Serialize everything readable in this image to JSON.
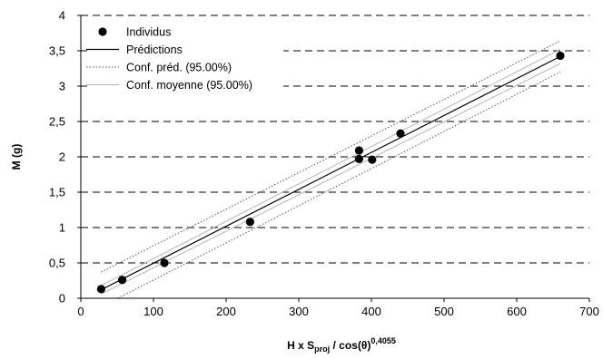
{
  "chart_data": {
    "type": "scatter",
    "xlabel": "H x S",
    "xlabel_sub": "proj",
    "xlabel_mid": " / cos(θ)",
    "xlabel_sup": "0,4055",
    "ylabel": "M (g)",
    "xlim": [
      0,
      700
    ],
    "ylim": [
      0,
      4
    ],
    "x_ticks": [
      {
        "value": 0,
        "label": "0"
      },
      {
        "value": 100,
        "label": "100"
      },
      {
        "value": 200,
        "label": "200"
      },
      {
        "value": 300,
        "label": "300"
      },
      {
        "value": 400,
        "label": "400"
      },
      {
        "value": 500,
        "label": "500"
      },
      {
        "value": 600,
        "label": "600"
      },
      {
        "value": 700,
        "label": "700"
      }
    ],
    "y_ticks": [
      {
        "value": 0,
        "label": "0"
      },
      {
        "value": 0.5,
        "label": "0,5"
      },
      {
        "value": 1,
        "label": "1"
      },
      {
        "value": 1.5,
        "label": "1,5"
      },
      {
        "value": 2,
        "label": "2"
      },
      {
        "value": 2.5,
        "label": "2,5"
      },
      {
        "value": 3,
        "label": "3"
      },
      {
        "value": 3.5,
        "label": "3,5"
      },
      {
        "value": 4,
        "label": "4"
      }
    ],
    "grid": "horizontal-dashed",
    "legend_position": "top-left",
    "legend": [
      {
        "key": "points",
        "label": "Individus"
      },
      {
        "key": "pred",
        "label": "Prédictions"
      },
      {
        "key": "conf_pred",
        "label": "Conf. préd. (95.00%)"
      },
      {
        "key": "conf_mean",
        "label": "Conf. moyenne (95.00%)"
      }
    ],
    "points": [
      {
        "x": 28,
        "y": 0.13
      },
      {
        "x": 57,
        "y": 0.26
      },
      {
        "x": 115,
        "y": 0.5
      },
      {
        "x": 233,
        "y": 1.08
      },
      {
        "x": 383,
        "y": 1.97
      },
      {
        "x": 383,
        "y": 2.09
      },
      {
        "x": 401,
        "y": 1.96
      },
      {
        "x": 440,
        "y": 2.33
      },
      {
        "x": 660,
        "y": 3.43
      }
    ],
    "lines": {
      "pred": [
        [
          28,
          0.12
        ],
        [
          660,
          3.42
        ]
      ],
      "conf_mean_upper": [
        [
          28,
          0.18
        ],
        [
          660,
          3.52
        ]
      ],
      "conf_mean_lower": [
        [
          28,
          0.06
        ],
        [
          660,
          3.32
        ]
      ],
      "conf_pred_upper": [
        [
          28,
          0.37
        ],
        [
          660,
          3.64
        ]
      ],
      "conf_pred_lower": [
        [
          28,
          -0.12
        ],
        [
          660,
          3.2
        ]
      ]
    },
    "colors": {
      "points": "#000000",
      "pred": "#000000",
      "conf_pred": "#555555",
      "conf_mean": "#b5b5b5",
      "grid": "#000000"
    }
  }
}
